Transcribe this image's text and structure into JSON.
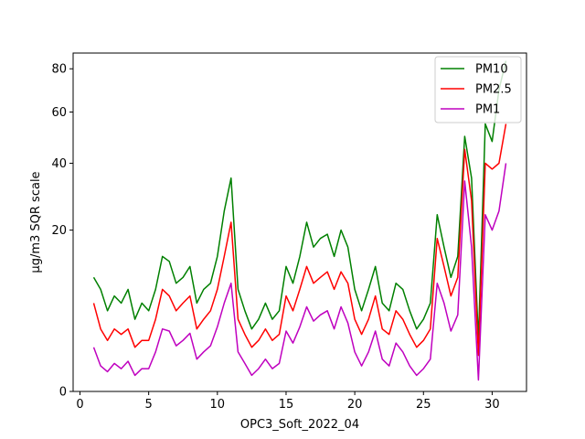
{
  "chart_data": {
    "type": "line",
    "xlabel": "OPC3_Soft_2022_04",
    "ylabel": "µg/m3 SQR scale",
    "y_scale": "sqrt",
    "xlim": [
      -0.5,
      32.5
    ],
    "ylim": [
      0,
      88
    ],
    "x_ticks": [
      0,
      5,
      10,
      15,
      20,
      25,
      30
    ],
    "y_ticks": [
      0,
      20,
      40,
      60,
      80
    ],
    "legend_position": "top-right",
    "grid": false,
    "series": [
      {
        "name": "PM10",
        "color": "#008000",
        "x": [
          1,
          1.5,
          2,
          2.5,
          3,
          3.5,
          4,
          4.5,
          5,
          5.5,
          6,
          6.5,
          7,
          7.5,
          8,
          8.5,
          9,
          9.5,
          10,
          10.5,
          11,
          11.5,
          12,
          12.5,
          13,
          13.5,
          14,
          14.5,
          15,
          15.5,
          16,
          16.5,
          17,
          17.5,
          18,
          18.5,
          19,
          19.5,
          20,
          20.5,
          21,
          21.5,
          22,
          22.5,
          23,
          23.5,
          24,
          24.5,
          25,
          25.5,
          26,
          26.5,
          27,
          27.5,
          28,
          28.5,
          29,
          29.5,
          30,
          30.5,
          31
        ],
        "values": [
          10,
          8,
          5,
          7,
          6,
          8,
          4,
          6,
          5,
          8,
          14,
          13,
          9,
          10,
          12,
          6,
          8,
          9,
          14,
          25,
          35,
          8,
          5,
          3,
          4,
          6,
          4,
          5,
          12,
          9,
          14,
          22,
          16,
          18,
          19,
          14,
          20,
          16,
          8,
          5,
          8,
          12,
          6,
          5,
          9,
          8,
          5,
          3,
          4,
          6,
          24,
          16,
          10,
          14,
          50,
          35,
          2,
          55,
          48,
          70,
          84
        ]
      },
      {
        "name": "PM2.5",
        "color": "#ff0000",
        "x": [
          1,
          1.5,
          2,
          2.5,
          3,
          3.5,
          4,
          4.5,
          5,
          5.5,
          6,
          6.5,
          7,
          7.5,
          8,
          8.5,
          9,
          9.5,
          10,
          10.5,
          11,
          11.5,
          12,
          12.5,
          13,
          13.5,
          14,
          14.5,
          15,
          15.5,
          16,
          16.5,
          17,
          17.5,
          18,
          18.5,
          19,
          19.5,
          20,
          20.5,
          21,
          21.5,
          22,
          22.5,
          23,
          23.5,
          24,
          24.5,
          25,
          25.5,
          26,
          26.5,
          27,
          27.5,
          28,
          28.5,
          29,
          29.5,
          30,
          30.5,
          31
        ],
        "values": [
          6,
          3,
          2,
          3,
          2.5,
          3,
          1.5,
          2,
          2,
          4,
          8,
          7,
          5,
          6,
          7,
          3,
          4,
          5,
          8,
          14,
          22,
          4,
          2.5,
          1.5,
          2,
          3,
          2,
          2.5,
          7,
          5,
          8,
          12,
          9,
          10,
          11,
          8,
          11,
          9,
          4,
          2.5,
          4,
          7,
          3,
          2.5,
          5,
          4,
          2.5,
          1.5,
          2,
          3,
          18,
          12,
          7,
          10,
          45,
          28,
          1,
          40,
          38,
          40,
          55
        ]
      },
      {
        "name": "PM1",
        "color": "#bf00bf",
        "x": [
          1,
          1.5,
          2,
          2.5,
          3,
          3.5,
          4,
          4.5,
          5,
          5.5,
          6,
          6.5,
          7,
          7.5,
          8,
          8.5,
          9,
          9.5,
          10,
          10.5,
          11,
          11.5,
          12,
          12.5,
          13,
          13.5,
          14,
          14.5,
          15,
          15.5,
          16,
          16.5,
          17,
          17.5,
          18,
          18.5,
          19,
          19.5,
          20,
          20.5,
          21,
          21.5,
          22,
          22.5,
          23,
          23.5,
          24,
          24.5,
          25,
          25.5,
          26,
          26.5,
          27,
          27.5,
          28,
          28.5,
          29,
          29.5,
          30,
          30.5,
          31
        ],
        "values": [
          1.5,
          0.5,
          0.3,
          0.6,
          0.4,
          0.7,
          0.2,
          0.4,
          0.4,
          1.2,
          3,
          2.8,
          1.6,
          2,
          2.6,
          0.8,
          1.2,
          1.6,
          3.2,
          6,
          9,
          1.2,
          0.6,
          0.2,
          0.4,
          0.8,
          0.4,
          0.6,
          2.8,
          1.8,
          3.2,
          5.5,
          3.8,
          4.5,
          5,
          3,
          5.5,
          3.6,
          1.2,
          0.5,
          1.2,
          2.8,
          0.8,
          0.5,
          1.8,
          1.2,
          0.5,
          0.2,
          0.4,
          0.8,
          9,
          6,
          2.8,
          4.5,
          34,
          16,
          0.1,
          24,
          20,
          25,
          40
        ]
      }
    ]
  }
}
